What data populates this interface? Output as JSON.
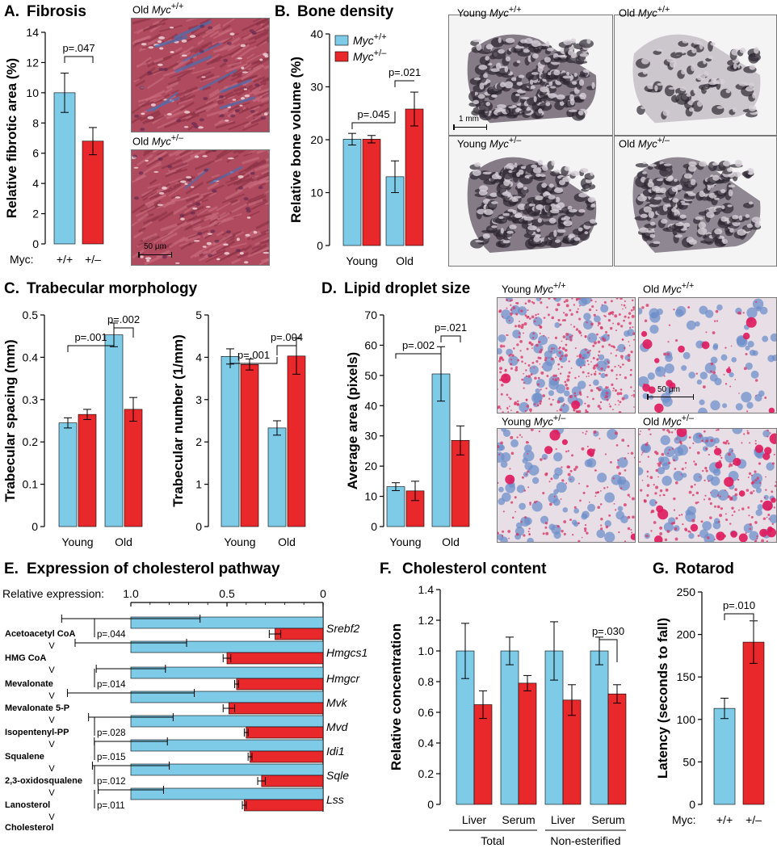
{
  "colors": {
    "wt": "#7ecbe8",
    "het": "#e8282b",
    "axis": "#000000"
  },
  "chart_data": [
    {
      "id": "A",
      "type": "bar",
      "panel_letter": "A.",
      "title": "Fibrosis",
      "ylabel": "Relative fibrotic area (%)",
      "ylim": [
        0,
        14
      ],
      "yticks": [
        "0",
        "2",
        "4",
        "6",
        "8",
        "10",
        "12",
        "14"
      ],
      "xprefix": "Myc:",
      "categories": [
        "+/+",
        "+/–"
      ],
      "values": [
        10.0,
        6.8
      ],
      "errors": [
        1.3,
        0.9
      ],
      "annotations": [
        "p=.047"
      ]
    },
    {
      "id": "B",
      "type": "bar",
      "panel_letter": "B.",
      "title": "Bone density",
      "ylabel": "Relative bone volume (%)",
      "ylim": [
        0,
        40
      ],
      "yticks": [
        "0",
        "10",
        "20",
        "30",
        "40"
      ],
      "categories": [
        "Young",
        "Old"
      ],
      "series": [
        {
          "name": "Myc+/+",
          "values": [
            20.1,
            13.0
          ],
          "errors": [
            1.1,
            3.0
          ]
        },
        {
          "name": "Myc+/–",
          "values": [
            20.1,
            25.8
          ],
          "errors": [
            0.7,
            3.2
          ]
        }
      ],
      "legend": "top-left",
      "annotations": [
        "p=.045",
        "p=.021"
      ]
    },
    {
      "id": "C1",
      "type": "bar",
      "panel_letter": "C.",
      "title": "Trabecular morphology",
      "ylabel": "Trabecular spacing (mm)",
      "ylim": [
        0,
        0.5
      ],
      "yticks": [
        "0",
        "0.1",
        "0.2",
        "0.3",
        "0.4",
        "0.5"
      ],
      "categories": [
        "Young",
        "Old"
      ],
      "series": [
        {
          "name": "Myc+/+",
          "values": [
            0.245,
            0.453
          ],
          "errors": [
            0.012,
            0.028
          ]
        },
        {
          "name": "Myc+/–",
          "values": [
            0.265,
            0.277
          ],
          "errors": [
            0.012,
            0.028
          ]
        }
      ],
      "annotations": [
        "p=.001",
        "p=.002"
      ]
    },
    {
      "id": "C2",
      "type": "bar",
      "ylabel": "Trabecular number (1/mm)",
      "ylim": [
        0,
        5
      ],
      "yticks": [
        "0",
        "1",
        "2",
        "3",
        "4",
        "5"
      ],
      "categories": [
        "Young",
        "Old"
      ],
      "series": [
        {
          "name": "Myc+/+",
          "values": [
            4.02,
            2.33
          ],
          "errors": [
            0.18,
            0.17
          ]
        },
        {
          "name": "Myc+/–",
          "values": [
            3.83,
            4.03
          ],
          "errors": [
            0.13,
            0.43
          ]
        }
      ],
      "annotations": [
        "p=.001",
        "p=.004"
      ]
    },
    {
      "id": "D",
      "type": "bar",
      "panel_letter": "D.",
      "title": "Lipid droplet size",
      "ylabel": "Average area (pixels)",
      "ylim": [
        0,
        70
      ],
      "yticks": [
        "0",
        "10",
        "20",
        "30",
        "40",
        "50",
        "60",
        "70"
      ],
      "categories": [
        "Young",
        "Old"
      ],
      "series": [
        {
          "name": "Myc+/+",
          "values": [
            13.2,
            50.5
          ],
          "errors": [
            1.3,
            9.0
          ]
        },
        {
          "name": "Myc+/–",
          "values": [
            11.8,
            28.5
          ],
          "errors": [
            3.2,
            4.8
          ]
        }
      ],
      "annotations": [
        "p=.002",
        "p=.021"
      ]
    },
    {
      "id": "E",
      "type": "bar",
      "orientation": "horizontal",
      "panel_letter": "E.",
      "title": "Expression of cholesterol pathway",
      "xlabel": "Relative expression:",
      "xlim": [
        1.0,
        0
      ],
      "xticks": [
        "1.0",
        "0.5",
        "0"
      ],
      "categories": [
        "Srebf2",
        "Hmgcs1",
        "Hmgcr",
        "Mvk",
        "Mvd",
        "Idi1",
        "Sqle",
        "Lss"
      ],
      "series": [
        {
          "name": "Myc+/+",
          "values": [
            1.0,
            1.0,
            1.0,
            1.0,
            1.0,
            1.0,
            1.0,
            1.0
          ],
          "errors": [
            0.36,
            0.29,
            0.18,
            0.33,
            0.22,
            0.19,
            0.2,
            0.17
          ]
        },
        {
          "name": "Myc+/–",
          "values": [
            0.25,
            0.5,
            0.45,
            0.49,
            0.4,
            0.38,
            0.32,
            0.41
          ],
          "errors": [
            0.03,
            0.02,
            0.01,
            0.03,
            0.01,
            0.01,
            0.02,
            0.01
          ]
        }
      ],
      "annotations": [
        "p=.044",
        "",
        "p=.014",
        "",
        "p=.028",
        "p=.015",
        "p=.012",
        "p=.011"
      ],
      "pathway": [
        "Acetoacetyl CoA",
        "HMG CoA",
        "Mevalonate",
        "Mevalonate 5-P",
        "Isopentenyl-PP",
        "Squalene",
        "2,3-oxidosqualene",
        "Lanosterol",
        "Cholesterol"
      ],
      "pathway_arrow": "V"
    },
    {
      "id": "F",
      "type": "bar",
      "panel_letter": "F.",
      "title": "Cholesterol content",
      "ylabel": "Relative concentration",
      "ylim": [
        0,
        1.4
      ],
      "yticks": [
        "0",
        "0.2",
        "0.4",
        "0.6",
        "0.8",
        "1.0",
        "1.2",
        "1.4"
      ],
      "categories": [
        "Liver",
        "Serum",
        "Liver",
        "Serum"
      ],
      "groups": [
        "Total",
        "Non-esterified"
      ],
      "series": [
        {
          "name": "Myc+/+",
          "values": [
            1.0,
            1.0,
            1.0,
            1.0
          ],
          "errors": [
            0.18,
            0.09,
            0.19,
            0.09
          ]
        },
        {
          "name": "Myc+/–",
          "values": [
            0.65,
            0.79,
            0.68,
            0.72
          ],
          "errors": [
            0.09,
            0.05,
            0.1,
            0.06
          ]
        }
      ],
      "annotations": [
        "p=.030"
      ]
    },
    {
      "id": "G",
      "type": "bar",
      "panel_letter": "G.",
      "title": "Rotarod",
      "ylabel": "Latency (seconds to fall)",
      "ylim": [
        0,
        250
      ],
      "yticks": [
        "0",
        "50",
        "100",
        "150",
        "200",
        "250"
      ],
      "xprefix": "Myc:",
      "categories": [
        "+/+",
        "+/–"
      ],
      "values": [
        113,
        191
      ],
      "errors": [
        12,
        25
      ],
      "annotations": [
        "p=.010"
      ]
    }
  ],
  "images": {
    "A": [
      {
        "prefix": "Old",
        "gene": "Myc",
        "sup": "+/+",
        "scale": ""
      },
      {
        "prefix": "Old",
        "gene": "Myc",
        "sup": "+/–",
        "scale": "50 μm"
      }
    ],
    "B": [
      {
        "prefix": "Young",
        "gene": "Myc",
        "sup": "+/+",
        "scale": "1 mm"
      },
      {
        "prefix": "Old",
        "gene": "Myc",
        "sup": "+/+",
        "scale": ""
      },
      {
        "prefix": "Young",
        "gene": "Myc",
        "sup": "+/–",
        "scale": ""
      },
      {
        "prefix": "Old",
        "gene": "Myc",
        "sup": "+/–",
        "scale": ""
      }
    ],
    "D": [
      {
        "prefix": "Young",
        "gene": "Myc",
        "sup": "+/+",
        "scale": ""
      },
      {
        "prefix": "Old",
        "gene": "Myc",
        "sup": "+/+",
        "scale": "50 μm"
      },
      {
        "prefix": "Young",
        "gene": "Myc",
        "sup": "+/–",
        "scale": ""
      },
      {
        "prefix": "Old",
        "gene": "Myc",
        "sup": "+/–",
        "scale": ""
      }
    ]
  }
}
